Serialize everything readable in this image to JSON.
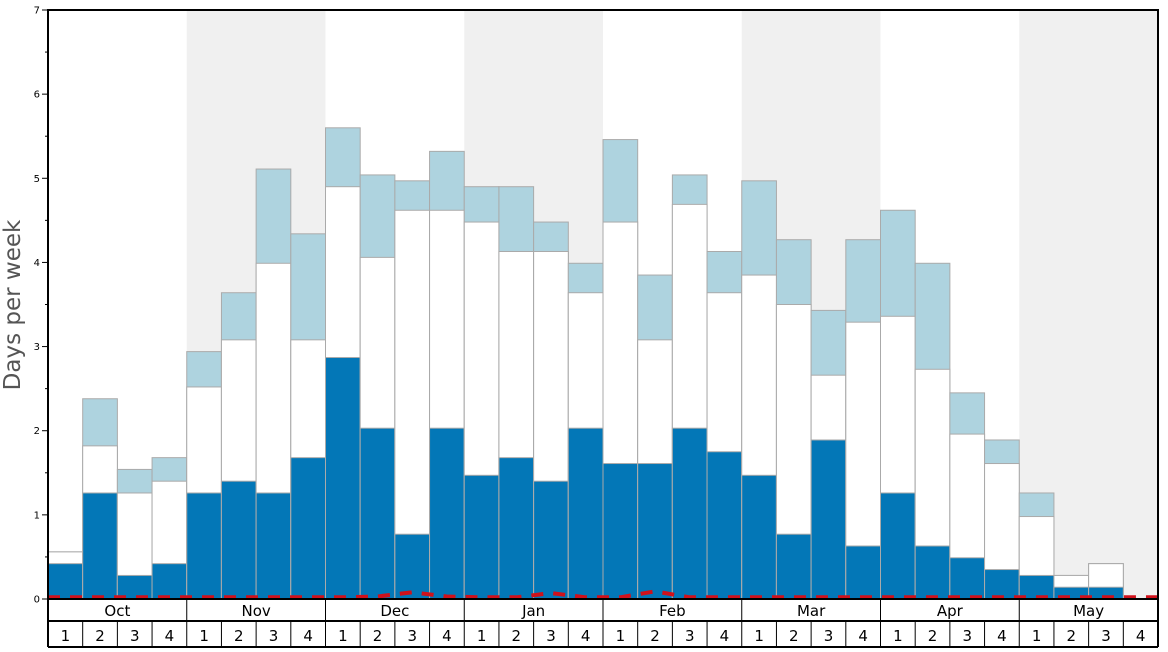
{
  "chart_data": {
    "type": "bar",
    "stacked": true,
    "ylabel": "Days per week",
    "ylim": [
      0,
      7
    ],
    "yticks": [
      "0",
      "1",
      "2",
      "3",
      "4",
      "5",
      "6",
      "7"
    ],
    "months": [
      "Oct",
      "Nov",
      "Dec",
      "Jan",
      "Feb",
      "Mar",
      "Apr",
      "May"
    ],
    "week_labels": [
      "1",
      "2",
      "3",
      "4"
    ],
    "grid": false,
    "legend": "none",
    "colors": {
      "bottom": "#0377b7",
      "middle": "#ffffff",
      "top": "#aed3df",
      "bar_outline": "#aaaaaa",
      "shade": "#f0f0f0",
      "dashed_line": "#d0111b"
    },
    "bar_totals": {
      "bottom": [
        0.42,
        1.26,
        0.28,
        0.42,
        1.26,
        1.4,
        1.26,
        1.68,
        2.87,
        2.03,
        0.77,
        2.03,
        1.47,
        1.68,
        1.4,
        2.03,
        1.61,
        1.61,
        2.03,
        1.75,
        1.47,
        0.77,
        1.89,
        0.63,
        1.26,
        0.63,
        0.49,
        0.35,
        0.28,
        0.14,
        0.14,
        0.0
      ],
      "middle": [
        0.56,
        1.82,
        1.26,
        1.4,
        2.52,
        3.08,
        3.99,
        3.08,
        4.9,
        4.06,
        4.62,
        4.62,
        4.48,
        4.13,
        4.13,
        3.64,
        4.48,
        3.08,
        4.69,
        3.64,
        3.85,
        3.5,
        2.66,
        3.29,
        3.36,
        2.73,
        1.96,
        1.61,
        0.98,
        0.28,
        0.42,
        0.0
      ],
      "top": [
        0.56,
        2.38,
        1.54,
        1.68,
        2.94,
        3.64,
        5.11,
        4.34,
        5.6,
        5.04,
        4.97,
        5.32,
        4.9,
        4.9,
        4.48,
        3.99,
        5.46,
        3.85,
        5.04,
        4.13,
        4.97,
        4.27,
        3.43,
        4.27,
        4.62,
        3.99,
        2.45,
        1.89,
        1.26,
        0.28,
        0.42,
        0.0
      ]
    },
    "dashed_line_values": [
      0.02,
      0.02,
      0.02,
      0.02,
      0.02,
      0.02,
      0.02,
      0.02,
      0.02,
      0.03,
      0.08,
      0.03,
      0.02,
      0.02,
      0.07,
      0.02,
      0.02,
      0.09,
      0.02,
      0.02,
      0.02,
      0.02,
      0.02,
      0.02,
      0.02,
      0.02,
      0.02,
      0.02,
      0.02,
      0.02,
      0.02,
      0.02
    ]
  }
}
